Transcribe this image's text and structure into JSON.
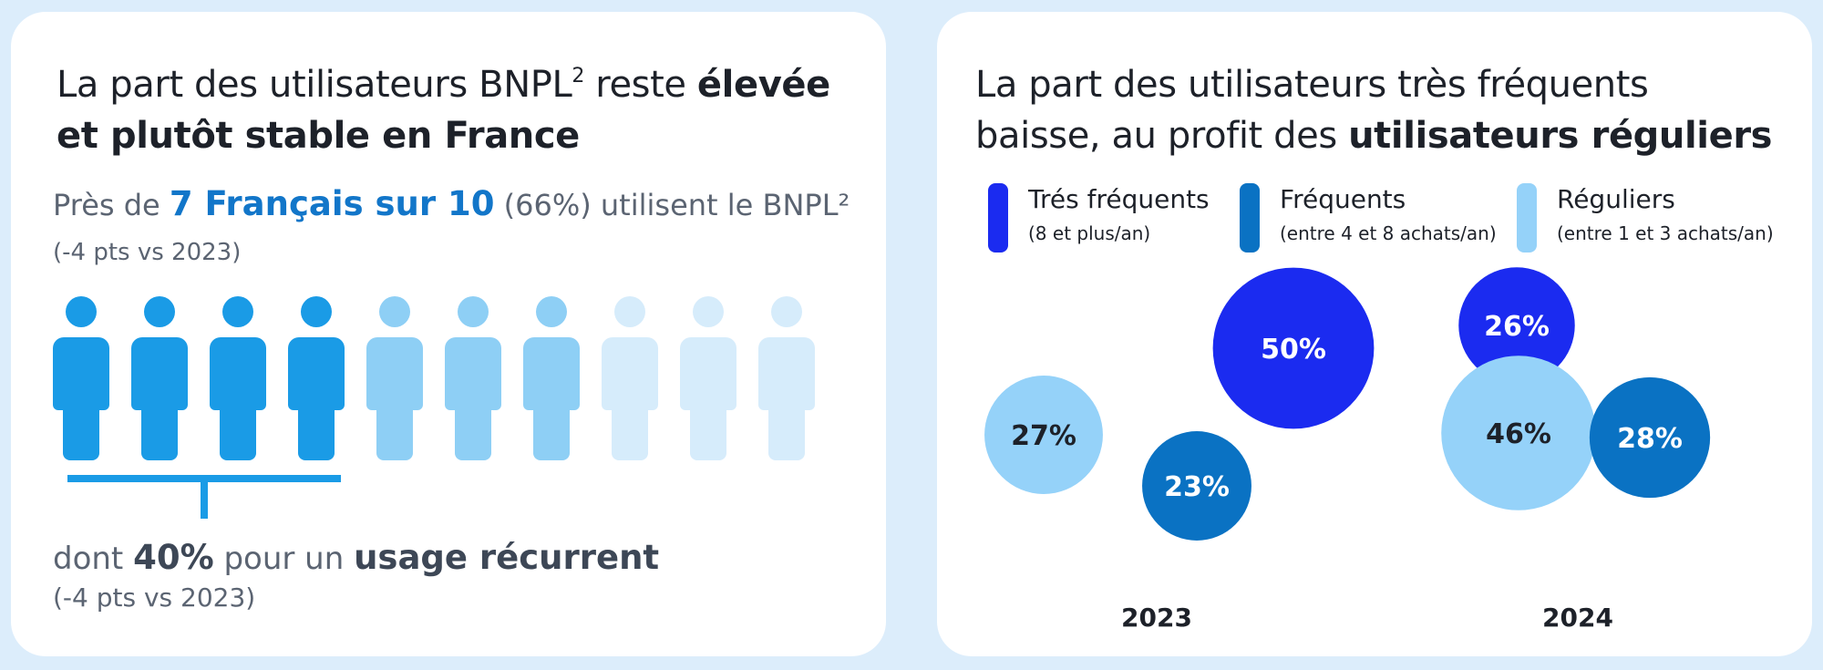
{
  "left": {
    "title_part1": "La part des utilisateurs BNPL",
    "title_sup": "2",
    "title_part2": " reste ",
    "title_bold1": "élevée",
    "title_bold2": "et plutôt stable en France",
    "lead_pre": "Près de ",
    "lead_highlight": "7 Français sur 10",
    "lead_paren": " (66%)",
    "lead_post": " utilisent le BNPL²",
    "lead_change": " (-4 pts vs 2023)",
    "sub_pre": "dont ",
    "sub_pct": "40%",
    "sub_mid": " pour un ",
    "sub_usage": "usage récurrent",
    "sub_change": "(-4 pts vs 2023)",
    "people_total": 10,
    "people_users": 7,
    "people_recurrent": 4
  },
  "right": {
    "title_line1": "La part des utilisateurs très fréquents",
    "title_line2_pre": "baisse, au profit des ",
    "title_line2_bold": "utilisateurs réguliers"
  },
  "colors": {
    "tres_frequents": "#1b2bf0",
    "frequents": "#0a72c3",
    "reguliers": "#95d2f9",
    "people_strong": "#1a9be6",
    "people_mid": "#8ecff5",
    "people_light": "#d6ecfb"
  },
  "chart_data": {
    "type": "bubble",
    "title": "",
    "legend": [
      {
        "key": "tres_frequents",
        "label": "Trés fréquents",
        "sublabel": "(8 et plus/an)"
      },
      {
        "key": "frequents",
        "label": "Fréquents",
        "sublabel": "(entre 4 et 8 achats/an)"
      },
      {
        "key": "reguliers",
        "label": "Réguliers",
        "sublabel": "(entre 1 et 3 achats/an)"
      }
    ],
    "groups": [
      {
        "year": "2023",
        "values": {
          "tres_frequents": 50,
          "frequents": 23,
          "reguliers": 27
        },
        "labels": {
          "tres_frequents": "50%",
          "frequents": "23%",
          "reguliers": "27%"
        }
      },
      {
        "year": "2024",
        "values": {
          "tres_frequents": 26,
          "frequents": 28,
          "reguliers": 46
        },
        "labels": {
          "tres_frequents": "26%",
          "frequents": "28%",
          "reguliers": "46%"
        }
      }
    ]
  }
}
